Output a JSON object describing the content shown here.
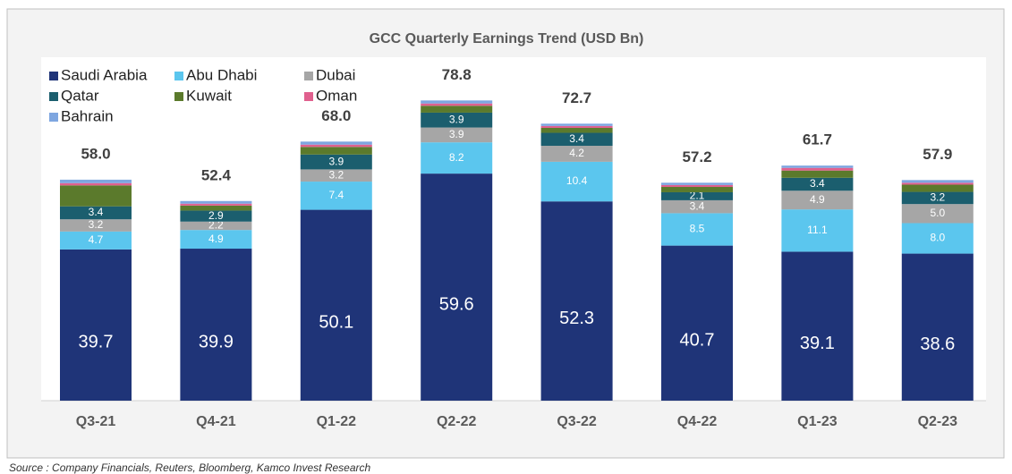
{
  "chart_data": {
    "type": "stacked_bar",
    "title": "GCC Quarterly Earnings Trend (USD Bn)",
    "categories": [
      "Q3-21",
      "Q4-21",
      "Q1-22",
      "Q2-22",
      "Q3-22",
      "Q4-22",
      "Q1-23",
      "Q2-23"
    ],
    "series": [
      {
        "name": "Saudi Arabia",
        "color": "#1f3478",
        "values": [
          39.7,
          39.9,
          50.1,
          59.6,
          52.3,
          40.7,
          39.1,
          38.6
        ],
        "value_labels": [
          "39.7",
          "39.9",
          "50.1",
          "59.6",
          "52.3",
          "40.7",
          "39.1",
          "38.6"
        ]
      },
      {
        "name": "Abu Dhabi",
        "color": "#5bc6ee",
        "values": [
          4.7,
          4.9,
          7.4,
          8.2,
          10.4,
          8.5,
          11.1,
          8.0
        ],
        "value_labels": [
          "4.7",
          "4.9",
          "7.4",
          "8.2",
          "10.4",
          "8.5",
          "11.1",
          "8.0"
        ]
      },
      {
        "name": "Dubai",
        "color": "#a6a6a6",
        "values": [
          3.2,
          2.2,
          3.2,
          3.9,
          4.2,
          3.4,
          4.9,
          5.0
        ],
        "value_labels": [
          "3.2",
          "2.2",
          "3.2",
          "3.9",
          "4.2",
          "3.4",
          "4.9",
          "5.0"
        ]
      },
      {
        "name": "Qatar",
        "color": "#1b5e6e",
        "values": [
          3.4,
          2.9,
          3.9,
          3.9,
          3.4,
          2.1,
          3.4,
          3.2
        ],
        "value_labels": [
          "3.4",
          "2.9",
          "3.9",
          "3.9",
          "3.4",
          "2.1",
          "3.4",
          "3.2"
        ]
      },
      {
        "name": "Kuwait",
        "color": "#5b7a2c",
        "values": [
          5.5,
          1.3,
          2.0,
          1.8,
          1.3,
          1.4,
          1.9,
          1.9
        ]
      },
      {
        "name": "Oman",
        "color": "#e0608e",
        "values": [
          0.6,
          0.5,
          0.6,
          0.6,
          0.5,
          0.5,
          0.7,
          0.5
        ]
      },
      {
        "name": "Bahrain",
        "color": "#7ea6e0",
        "values": [
          0.9,
          0.7,
          0.8,
          0.8,
          0.6,
          0.6,
          0.6,
          0.7
        ]
      }
    ],
    "totals": [
      58.0,
      52.4,
      68.0,
      78.8,
      72.7,
      57.2,
      61.7,
      57.9
    ],
    "total_labels": [
      "58.0",
      "52.4",
      "68.0",
      "78.8",
      "72.7",
      "57.2",
      "61.7",
      "57.9"
    ],
    "source": "Source : Company Financials, Reuters, Bloomberg, Kamco Invest Research"
  }
}
